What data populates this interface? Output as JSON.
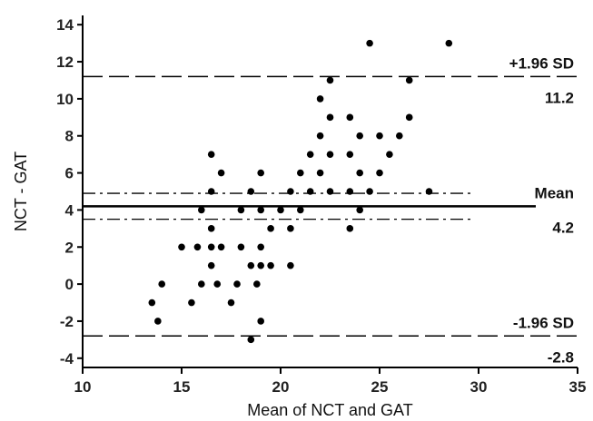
{
  "chart_data": {
    "type": "scatter",
    "title": "",
    "xlabel": "Mean of NCT and GAT",
    "ylabel": "NCT - GAT",
    "xlim": [
      10,
      35
    ],
    "ylim": [
      -4.5,
      14.5
    ],
    "xticks": [
      10,
      15,
      20,
      25,
      30,
      35
    ],
    "yticks": [
      -4,
      -2,
      0,
      2,
      4,
      6,
      8,
      10,
      12,
      14
    ],
    "grid": false,
    "points": [
      [
        13.5,
        -1
      ],
      [
        13.8,
        -2
      ],
      [
        14.0,
        0
      ],
      [
        15.0,
        2
      ],
      [
        15.5,
        -1
      ],
      [
        15.8,
        2
      ],
      [
        16.0,
        0
      ],
      [
        16.0,
        4
      ],
      [
        16.5,
        7
      ],
      [
        16.5,
        5
      ],
      [
        16.5,
        3
      ],
      [
        16.5,
        1
      ],
      [
        16.5,
        2
      ],
      [
        16.8,
        0
      ],
      [
        17.0,
        6
      ],
      [
        17.0,
        2
      ],
      [
        17.5,
        -1
      ],
      [
        17.8,
        0
      ],
      [
        18.0,
        4
      ],
      [
        18.0,
        2
      ],
      [
        18.5,
        5
      ],
      [
        18.5,
        1
      ],
      [
        18.5,
        -3
      ],
      [
        18.8,
        0
      ],
      [
        19.0,
        6
      ],
      [
        19.0,
        4
      ],
      [
        19.0,
        2
      ],
      [
        19.0,
        1
      ],
      [
        19.0,
        -2
      ],
      [
        19.5,
        3
      ],
      [
        19.5,
        1
      ],
      [
        20.0,
        4
      ],
      [
        20.5,
        5
      ],
      [
        20.5,
        3
      ],
      [
        20.5,
        1
      ],
      [
        21.0,
        6
      ],
      [
        21.0,
        4
      ],
      [
        21.5,
        7
      ],
      [
        21.5,
        5
      ],
      [
        22.0,
        10
      ],
      [
        22.0,
        8
      ],
      [
        22.0,
        6
      ],
      [
        22.5,
        11
      ],
      [
        22.5,
        9
      ],
      [
        22.5,
        7
      ],
      [
        22.5,
        5
      ],
      [
        23.5,
        9
      ],
      [
        23.5,
        7
      ],
      [
        23.5,
        5
      ],
      [
        23.5,
        3
      ],
      [
        24.0,
        8
      ],
      [
        24.0,
        6
      ],
      [
        24.0,
        4
      ],
      [
        24.5,
        13
      ],
      [
        24.5,
        5
      ],
      [
        25.0,
        8
      ],
      [
        25.0,
        6
      ],
      [
        25.5,
        7
      ],
      [
        26.0,
        8
      ],
      [
        26.5,
        11
      ],
      [
        26.5,
        9
      ],
      [
        27.5,
        5
      ],
      [
        28.5,
        13
      ]
    ],
    "reference_lines": [
      {
        "name": "upper",
        "label": "+1.96 SD",
        "value_label": "11.2",
        "value": 11.2,
        "style": "dashed"
      },
      {
        "name": "mean",
        "label": "Mean",
        "value_label": "4.2",
        "value": 4.2,
        "style": "solid"
      },
      {
        "name": "mean-ci-upper",
        "label": "",
        "value_label": "",
        "value": 4.9,
        "style": "dashdot"
      },
      {
        "name": "mean-ci-lower",
        "label": "",
        "value_label": "",
        "value": 3.5,
        "style": "dashdot"
      },
      {
        "name": "lower",
        "label": "-1.96 SD",
        "value_label": "-2.8",
        "value": -2.8,
        "style": "dashed"
      }
    ]
  }
}
